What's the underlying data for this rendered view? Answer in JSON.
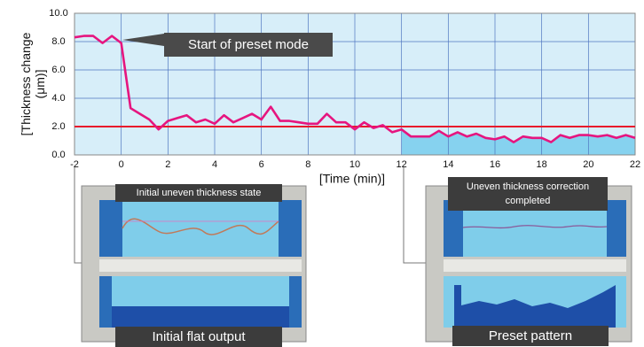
{
  "chart_data": {
    "type": "line",
    "ylabel": [
      "[Thickness change",
      "(μm)]"
    ],
    "xlabel": "[Time (min)]",
    "xlim": [
      -2,
      22
    ],
    "ylim": [
      0,
      10
    ],
    "xticks": [
      -2,
      0,
      2,
      4,
      6,
      8,
      10,
      12,
      14,
      16,
      18,
      20,
      22
    ],
    "yticks": [
      {
        "value": 0,
        "label": "0.0"
      },
      {
        "value": 2,
        "label": "2.0"
      },
      {
        "value": 4,
        "label": "4.0"
      },
      {
        "value": 6,
        "label": "6.0"
      },
      {
        "value": 8,
        "label": "8.0"
      },
      {
        "value": 10,
        "label": "10.0"
      }
    ],
    "grid": true,
    "target": 2.0,
    "target_color": "#e8192c",
    "shade_from": 12,
    "x": [
      -2,
      -1.6,
      -1.2,
      -0.8,
      -0.4,
      0,
      0.4,
      0.8,
      1.2,
      1.6,
      2,
      2.4,
      2.8,
      3.2,
      3.6,
      4,
      4.4,
      4.8,
      5.2,
      5.6,
      6,
      6.4,
      6.8,
      7.2,
      7.6,
      8,
      8.4,
      8.8,
      9.2,
      9.6,
      10,
      10.4,
      10.8,
      11.2,
      11.6,
      12,
      12.4,
      12.8,
      13.2,
      13.6,
      14,
      14.4,
      14.8,
      15.2,
      15.6,
      16,
      16.4,
      16.8,
      17.2,
      17.6,
      18,
      18.4,
      18.8,
      19.2,
      19.6,
      20,
      20.4,
      20.8,
      21.2,
      21.6,
      22
    ],
    "series": [
      {
        "color": "#e6157f",
        "values": [
          8.3,
          8.4,
          8.4,
          7.9,
          8.4,
          7.9,
          3.3,
          2.9,
          2.5,
          1.8,
          2.4,
          2.6,
          2.8,
          2.3,
          2.5,
          2.2,
          2.8,
          2.3,
          2.6,
          2.9,
          2.5,
          3.4,
          2.4,
          2.4,
          2.3,
          2.2,
          2.2,
          2.9,
          2.3,
          2.3,
          1.8,
          2.3,
          1.9,
          2.1,
          1.6,
          1.8,
          1.3,
          1.3,
          1.3,
          1.7,
          1.3,
          1.6,
          1.3,
          1.5,
          1.2,
          1.1,
          1.3,
          0.9,
          1.3,
          1.2,
          1.2,
          0.9,
          1.4,
          1.2,
          1.4,
          1.4,
          1.3,
          1.4,
          1.2,
          1.4,
          1.2
        ]
      }
    ],
    "annotation": "Start of preset mode",
    "insets": [
      {
        "caption_top": [
          "Initial uneven thickness state"
        ],
        "caption_bottom": "Initial flat output"
      },
      {
        "caption_top": [
          "Uneven thickness correction",
          "completed"
        ],
        "caption_bottom": "Preset pattern"
      }
    ]
  }
}
